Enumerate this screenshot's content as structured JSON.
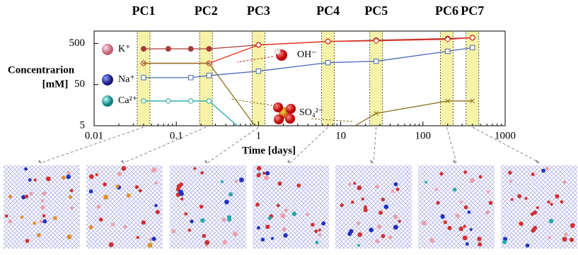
{
  "chart_data": {
    "type": "line",
    "xlabel": "Time [days]",
    "ylabel": [
      "Concentrarion",
      "[mM]"
    ],
    "xscale": "log",
    "yscale": "log",
    "xlim": [
      0.01,
      1000
    ],
    "xticks": [
      0.01,
      0.1,
      1,
      10,
      100,
      1000
    ],
    "ylim": [
      5,
      1000
    ],
    "yticks": [
      5,
      50,
      500
    ],
    "highlights": [
      {
        "label": "PC1",
        "x": 0.04,
        "color": "#f6f3a8"
      },
      {
        "label": "PC2",
        "x": 0.23,
        "color": "#f6f3a8"
      },
      {
        "label": "PC3",
        "x": 1,
        "color": "#f6f3a8"
      },
      {
        "label": "PC4",
        "x": 7,
        "color": "#f6f3a8"
      },
      {
        "label": "PC5",
        "x": 27,
        "color": "#f6f3a8"
      },
      {
        "label": "PC6",
        "x": 195,
        "color": "#f6f3a8"
      },
      {
        "label": "PC7",
        "x": 400,
        "color": "#f6f3a8"
      }
    ],
    "series": [
      {
        "name": "K⁺",
        "color": "#a83a3a",
        "marker": "circle-filled",
        "x": [
          0.04,
          0.08,
          0.15,
          0.25,
          1,
          7,
          27,
          200,
          400
        ],
        "values": [
          370,
          370,
          370,
          370,
          460,
          560,
          600,
          660,
          690
        ]
      },
      {
        "name": "OH⁻",
        "color": "#e0301e",
        "marker": "diamond",
        "x": [
          0.04,
          0.25,
          1,
          7,
          27,
          200,
          400
        ],
        "values": [
          165,
          165,
          460,
          560,
          580,
          630,
          690
        ]
      },
      {
        "name": "Na⁺",
        "color": "#4a68b8",
        "marker": "square",
        "x": [
          0.04,
          0.15,
          0.25,
          1,
          7,
          27,
          200,
          400
        ],
        "values": [
          74,
          74,
          83,
          106,
          171,
          185,
          323,
          395
        ]
      },
      {
        "name": "Ca²⁺",
        "color": "#22a6a6",
        "marker": "circle",
        "x": [
          0.04,
          0.08,
          0.15,
          0.25,
          0.55
        ],
        "values": [
          20,
          20,
          20,
          20,
          5
        ]
      },
      {
        "name": "SO₄²⁻",
        "color": "#8d7222",
        "marker": "cross",
        "x": [
          0.04,
          0.25,
          0.9,
          3,
          15,
          27,
          200,
          400
        ],
        "values": [
          165,
          165,
          5,
          null,
          5,
          10,
          20,
          20
        ]
      }
    ]
  }
}
